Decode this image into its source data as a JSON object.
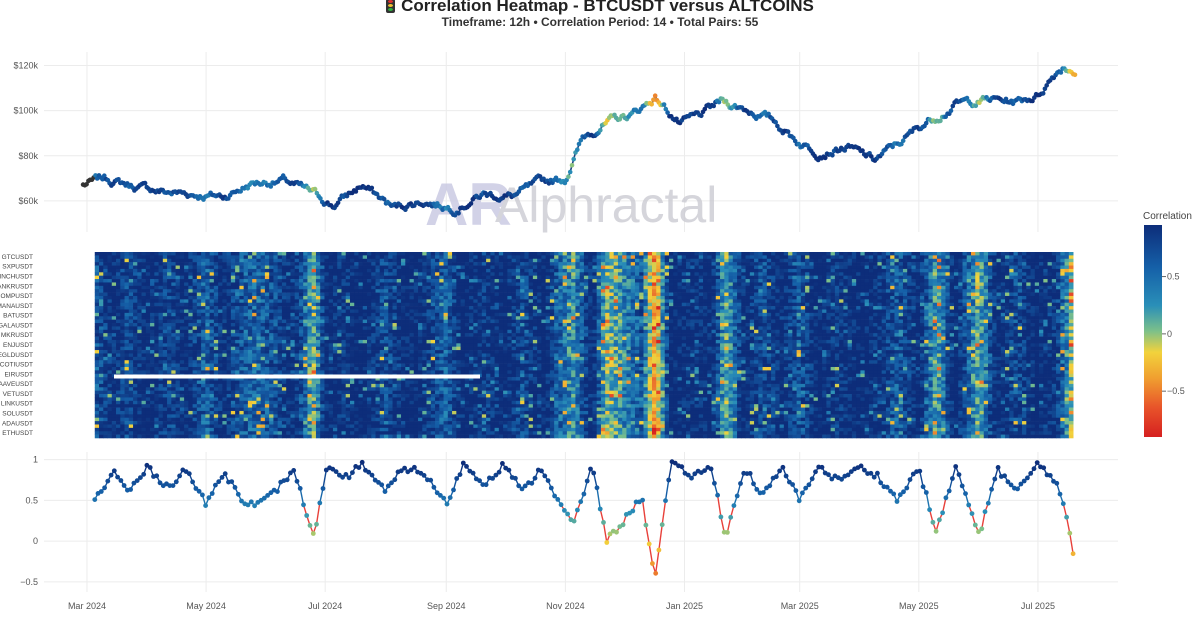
{
  "header": {
    "title": "Correlation Heatmap - BTCUSDT versus ALTCOINS",
    "subtitle": "Timeframe: 12h • Correlation Period: 14  • Total Pairs: 55"
  },
  "watermark": {
    "logo": "AR",
    "text": "Alphractal"
  },
  "colorbar": {
    "title": "Correlation",
    "ticks": [
      0.5,
      0,
      -0.5
    ],
    "colors": [
      "#0d2d7a",
      "#1560a8",
      "#2a8fb8",
      "#7cc08a",
      "#f2d23c",
      "#f0a030",
      "#e8542a",
      "#d62020"
    ]
  },
  "chart_data": [
    {
      "type": "line",
      "name": "price",
      "ylabel": "",
      "yticks": [
        60000,
        80000,
        100000,
        120000
      ],
      "ytick_labels": [
        "$60k",
        "$80k",
        "$100k",
        "$120k"
      ],
      "ylim": [
        48000,
        126000
      ],
      "x": [
        "2024-02-28",
        "2024-03-10",
        "2024-03-25",
        "2024-04-10",
        "2024-04-25",
        "2024-05-10",
        "2024-05-25",
        "2024-06-10",
        "2024-06-25",
        "2024-07-05",
        "2024-07-20",
        "2024-08-05",
        "2024-08-20",
        "2024-09-05",
        "2024-09-20",
        "2024-10-05",
        "2024-10-20",
        "2024-11-01",
        "2024-11-10",
        "2024-11-20",
        "2024-12-05",
        "2024-12-17",
        "2024-12-30",
        "2025-01-10",
        "2025-01-20",
        "2025-02-01",
        "2025-02-15",
        "2025-03-01",
        "2025-03-10",
        "2025-03-25",
        "2025-04-08",
        "2025-04-20",
        "2025-05-05",
        "2025-05-20",
        "2025-06-05",
        "2025-06-20",
        "2025-07-01",
        "2025-07-10",
        "2025-07-14",
        "2025-07-20"
      ],
      "values": [
        67000,
        70000,
        66500,
        64000,
        63000,
        62000,
        68000,
        69000,
        63000,
        58000,
        67000,
        57000,
        60000,
        57000,
        63000,
        62000,
        68000,
        70000,
        88000,
        94000,
        98000,
        106000,
        94000,
        98000,
        104000,
        101000,
        96000,
        86000,
        82000,
        84000,
        78000,
        85000,
        95000,
        103000,
        105000,
        104000,
        107000,
        117000,
        120000,
        118000
      ]
    },
    {
      "type": "heatmap",
      "name": "correlation",
      "rows": [
        "GTCUSDT",
        "SXPUSDT",
        "INCHUSDT",
        "ANKRUSDT",
        "COMPUSDT",
        "MANAUSDT",
        "BATUSDT",
        "GALAUSDT",
        "MKRUSDT",
        "ENJUSDT",
        "EGLDUSDT",
        "COTIUSDT",
        "EIRUSDT",
        "AAVEUSDT",
        "VETUSDT",
        "LINKUSDT",
        "SOLUSDT",
        "ADAUSDT",
        "ETHUSDT"
      ],
      "x_start": "2024-03-05",
      "x_end": "2025-07-19",
      "vmin": -0.9,
      "vmax": 0.95
    },
    {
      "type": "line",
      "name": "average correlation",
      "ylabel": "",
      "yticks": [
        -0.5,
        0,
        0.5,
        1
      ],
      "ytick_labels": [
        "−0.5",
        "0",
        "0.5",
        "1"
      ],
      "ylim": [
        -0.6,
        1.02
      ],
      "x": [
        "2024-03-05",
        "2024-03-15",
        "2024-03-22",
        "2024-04-01",
        "2024-04-12",
        "2024-04-20",
        "2024-05-01",
        "2024-05-10",
        "2024-05-20",
        "2024-05-28",
        "2024-06-05",
        "2024-06-15",
        "2024-06-25",
        "2024-07-02",
        "2024-07-10",
        "2024-07-20",
        "2024-08-01",
        "2024-08-10",
        "2024-08-20",
        "2024-09-01",
        "2024-09-10",
        "2024-09-20",
        "2024-10-01",
        "2024-10-10",
        "2024-10-20",
        "2024-10-28",
        "2024-11-05",
        "2024-11-15",
        "2024-11-22",
        "2024-12-01",
        "2024-12-10",
        "2024-12-17",
        "2024-12-25",
        "2025-01-05",
        "2025-01-15",
        "2025-01-22",
        "2025-02-01",
        "2025-02-10",
        "2025-02-20",
        "2025-03-01",
        "2025-03-10",
        "2025-03-20",
        "2025-04-01",
        "2025-04-10",
        "2025-04-20",
        "2025-05-01",
        "2025-05-10",
        "2025-05-20",
        "2025-06-01",
        "2025-06-10",
        "2025-06-20",
        "2025-07-01",
        "2025-07-10",
        "2025-07-15",
        "2025-07-19"
      ],
      "values": [
        0.5,
        0.85,
        0.6,
        0.9,
        0.65,
        0.9,
        0.45,
        0.85,
        0.5,
        0.45,
        0.6,
        0.88,
        0.05,
        0.9,
        0.75,
        0.95,
        0.6,
        0.9,
        0.85,
        0.45,
        0.95,
        0.7,
        0.95,
        0.6,
        0.9,
        0.5,
        0.2,
        0.93,
        0.0,
        0.25,
        0.55,
        -0.45,
        0.95,
        0.8,
        0.9,
        0.05,
        0.9,
        0.55,
        0.9,
        0.5,
        0.92,
        0.75,
        0.9,
        0.8,
        0.5,
        0.9,
        0.1,
        0.92,
        0.05,
        0.9,
        0.6,
        0.95,
        0.75,
        0.35,
        -0.15
      ]
    },
    {
      "type": "axis",
      "xticks": [
        "2024-03-01",
        "2024-05-01",
        "2024-07-01",
        "2024-09-01",
        "2024-11-01",
        "2025-01-01",
        "2025-03-01",
        "2025-05-01",
        "2025-07-01"
      ],
      "xtick_labels": [
        "Mar 2024",
        "May 2024",
        "Jul 2024",
        "Sep 2024",
        "Nov 2024",
        "Jan 2025",
        "Mar 2025",
        "May 2025",
        "Jul 2025"
      ],
      "x_range": [
        "2024-02-08",
        "2025-08-11"
      ]
    }
  ]
}
